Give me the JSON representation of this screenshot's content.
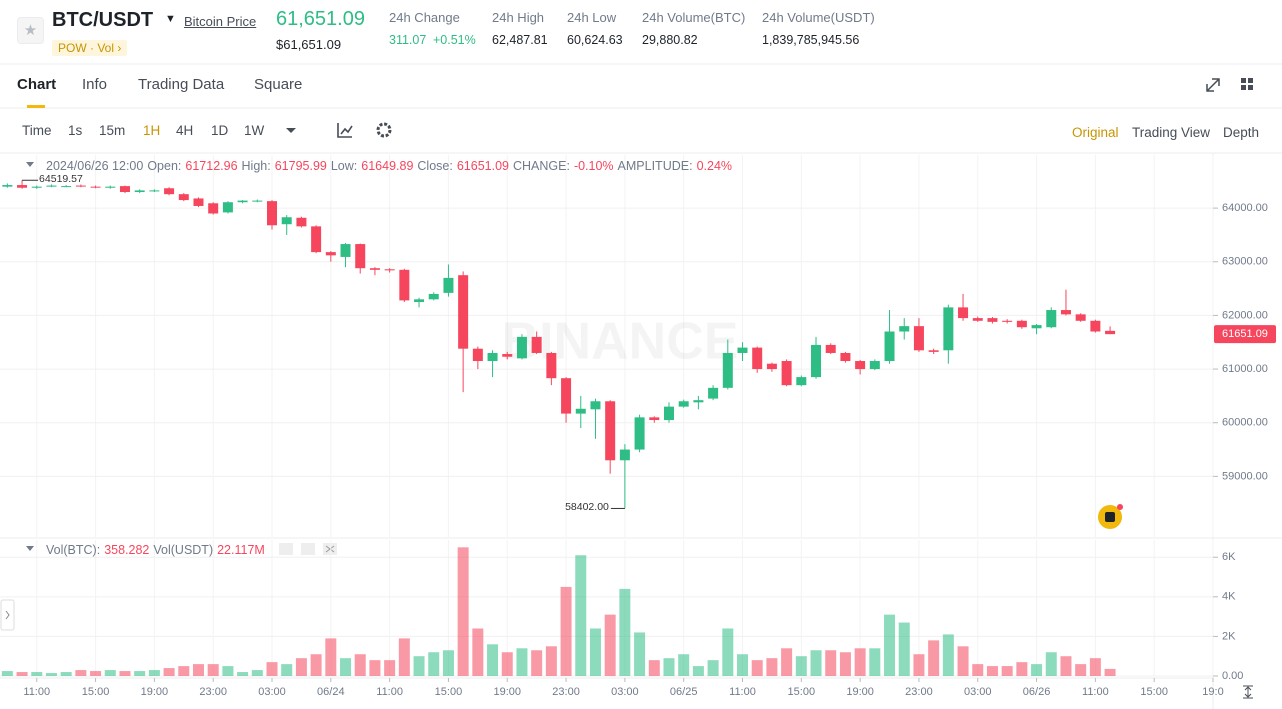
{
  "header": {
    "symbol": "BTC/USDT",
    "link": "Bitcoin Price",
    "tags": [
      "POW",
      "Vol"
    ],
    "price": "61,651.09",
    "price_usd": "$61,651.09",
    "stats": [
      {
        "label": "24h Change",
        "value": "311.07",
        "extra": "+0.51%"
      },
      {
        "label": "24h High",
        "value": "62,487.81"
      },
      {
        "label": "24h Low",
        "value": "60,624.63"
      },
      {
        "label": "24h Volume(BTC)",
        "value": "29,880.82"
      },
      {
        "label": "24h Volume(USDT)",
        "value": "1,839,785,945.56"
      }
    ]
  },
  "tabs": [
    "Chart",
    "Info",
    "Trading Data",
    "Square"
  ],
  "toolbar": {
    "intervals": [
      "Time",
      "1s",
      "15m",
      "1H",
      "4H",
      "1D",
      "1W"
    ],
    "views": [
      "Original",
      "Trading View",
      "Depth"
    ]
  },
  "chart_data": [
    {
      "type": "candlestick",
      "watermark": "BINANCE",
      "legend": {
        "time": "2024/06/26 12:00",
        "open_label": "Open:",
        "high_label": "High:",
        "low_label": "Low:",
        "close_label": "Close:",
        "change_label": "CHANGE:",
        "change": "-0.10%",
        "amplitude_label": "AMPLITUDE:",
        "amplitude": "0.24%"
      },
      "max_label": "64519.57",
      "min_label": "58402.00",
      "up_color": "#2ebd85",
      "down_color": "#f6465d",
      "grid": true,
      "xlim": [
        -0.5,
        82
      ],
      "ylim": [
        57870,
        64990
      ],
      "yticks": [
        {
          "value": 59000,
          "label": "59000.00"
        },
        {
          "value": 60000,
          "label": "60000.00"
        },
        {
          "value": 61000,
          "label": "61000.00"
        },
        {
          "value": 62000,
          "label": "62000.00"
        },
        {
          "value": 63000,
          "label": "63000.00"
        },
        {
          "value": 64000,
          "label": "64000.00"
        }
      ],
      "open": [
        64400,
        64430,
        64380,
        64400,
        64410,
        64420,
        64400,
        64380,
        64410,
        64300,
        64320,
        64370,
        64260,
        64180,
        64090,
        63920,
        64110,
        64130,
        64130,
        63700,
        63820,
        63660,
        63180,
        63090,
        63330,
        62880,
        62860,
        62850,
        62250,
        62300,
        62420,
        62750,
        61380,
        61150,
        61280,
        61200,
        61600,
        61300,
        60830,
        60170,
        60250,
        60400,
        59300,
        59500,
        60100,
        60050,
        60300,
        60380,
        60450,
        60650,
        61300,
        61400,
        61100,
        61150,
        60700,
        60850,
        61450,
        61300,
        61150,
        61000,
        61150,
        61700,
        61800,
        61350,
        61350,
        62150,
        61950,
        61950,
        61900,
        61900,
        61760,
        61780,
        62100,
        62020,
        61900,
        61712.96
      ],
      "high": [
        64460,
        64519.57,
        64420,
        64440,
        64430,
        64440,
        64420,
        64420,
        64420,
        64350,
        64350,
        64390,
        64280,
        64200,
        64110,
        64130,
        64150,
        64160,
        64150,
        63870,
        63840,
        63680,
        63200,
        63350,
        63340,
        62900,
        62880,
        62870,
        62330,
        62430,
        62950,
        62820,
        61420,
        61350,
        61320,
        61650,
        61700,
        61320,
        60850,
        60500,
        60450,
        60420,
        59600,
        60150,
        60120,
        60380,
        60430,
        60500,
        60700,
        61550,
        61500,
        61420,
        61120,
        61180,
        60880,
        61600,
        61480,
        61320,
        61170,
        61180,
        62100,
        61950,
        61950,
        61380,
        62200,
        62400,
        61980,
        61970,
        61930,
        61920,
        61840,
        62150,
        62480,
        62040,
        61920,
        61795.99
      ],
      "low": [
        64380,
        64360,
        64360,
        64390,
        64390,
        64390,
        64370,
        64360,
        64280,
        64280,
        64300,
        64240,
        64130,
        64020,
        63880,
        63900,
        64090,
        64110,
        63600,
        63500,
        63640,
        63160,
        63000,
        62900,
        62780,
        62750,
        62800,
        62250,
        62150,
        62280,
        62350,
        60570,
        61000,
        60850,
        61180,
        61180,
        61280,
        60700,
        60000,
        59900,
        59700,
        59050,
        58402,
        59450,
        60000,
        60000,
        60280,
        60250,
        60420,
        60620,
        61150,
        60930,
        60950,
        60680,
        60680,
        60820,
        61280,
        61120,
        60900,
        60980,
        61100,
        61550,
        61320,
        61280,
        61100,
        61900,
        61880,
        61850,
        61850,
        61750,
        61650,
        61760,
        62000,
        61880,
        61680,
        61649.89
      ],
      "close": [
        64430,
        64380,
        64400,
        64420,
        64410,
        64410,
        64390,
        64400,
        64300,
        64330,
        64330,
        64260,
        64150,
        64040,
        63900,
        64110,
        64140,
        64140,
        63680,
        63830,
        63660,
        63180,
        63120,
        63330,
        62880,
        62850,
        62840,
        62280,
        62300,
        62400,
        62700,
        61380,
        61150,
        61300,
        61230,
        61600,
        61300,
        60830,
        60170,
        60260,
        60400,
        59300,
        59500,
        60100,
        60050,
        60300,
        60400,
        60420,
        60650,
        61300,
        61400,
        61000,
        61000,
        60700,
        60850,
        61450,
        61300,
        61150,
        61000,
        61150,
        61700,
        61800,
        61350,
        61320,
        62150,
        61950,
        61900,
        61880,
        61880,
        61780,
        61820,
        62100,
        62020,
        61900,
        61700,
        61651.09
      ]
    },
    {
      "type": "bar",
      "legend": {
        "vol_btc_label": "Vol(BTC):",
        "vol_usdt_label": "Vol(USDT)",
        "vol_usdt": "22.117M"
      },
      "grid": true,
      "ylim": [
        0,
        6870
      ],
      "yticks": [
        {
          "value": 0,
          "label": "0.00"
        },
        {
          "value": 2000,
          "label": "2K"
        },
        {
          "value": 4000,
          "label": "4K"
        },
        {
          "value": 6000,
          "label": "6K"
        }
      ],
      "xticks": [
        {
          "value": 2,
          "label": "11:00"
        },
        {
          "value": 6,
          "label": "15:00"
        },
        {
          "value": 10,
          "label": "19:00"
        },
        {
          "value": 14,
          "label": "23:00"
        },
        {
          "value": 18,
          "label": "03:00"
        },
        {
          "value": 22,
          "label": "06/24"
        },
        {
          "value": 26,
          "label": "11:00"
        },
        {
          "value": 30,
          "label": "15:00"
        },
        {
          "value": 34,
          "label": "19:00"
        },
        {
          "value": 38,
          "label": "23:00"
        },
        {
          "value": 42,
          "label": "03:00"
        },
        {
          "value": 46,
          "label": "06/25"
        },
        {
          "value": 50,
          "label": "11:00"
        },
        {
          "value": 54,
          "label": "15:00"
        },
        {
          "value": 58,
          "label": "19:00"
        },
        {
          "value": 62,
          "label": "23:00"
        },
        {
          "value": 66,
          "label": "03:00"
        },
        {
          "value": 70,
          "label": "06/26"
        },
        {
          "value": 74,
          "label": "11:00"
        },
        {
          "value": 78,
          "label": "15:00"
        },
        {
          "value": 82,
          "label": "19:0"
        }
      ],
      "values": [
        250,
        200,
        200,
        150,
        200,
        300,
        250,
        300,
        250,
        250,
        300,
        400,
        500,
        600,
        600,
        500,
        200,
        300,
        700,
        600,
        900,
        1100,
        1900,
        900,
        1100,
        800,
        800,
        1900,
        1000,
        1200,
        1300,
        6500,
        2400,
        1600,
        1200,
        1400,
        1300,
        1500,
        4500,
        6100,
        2400,
        3100,
        4400,
        2200,
        800,
        900,
        1100,
        500,
        800,
        2400,
        1100,
        800,
        900,
        1400,
        1000,
        1300,
        1300,
        1200,
        1400,
        1400,
        3100,
        2700,
        1100,
        1800,
        2100,
        1500,
        600,
        500,
        500,
        700,
        600,
        1200,
        1000,
        600,
        900,
        358.282
      ]
    }
  ]
}
